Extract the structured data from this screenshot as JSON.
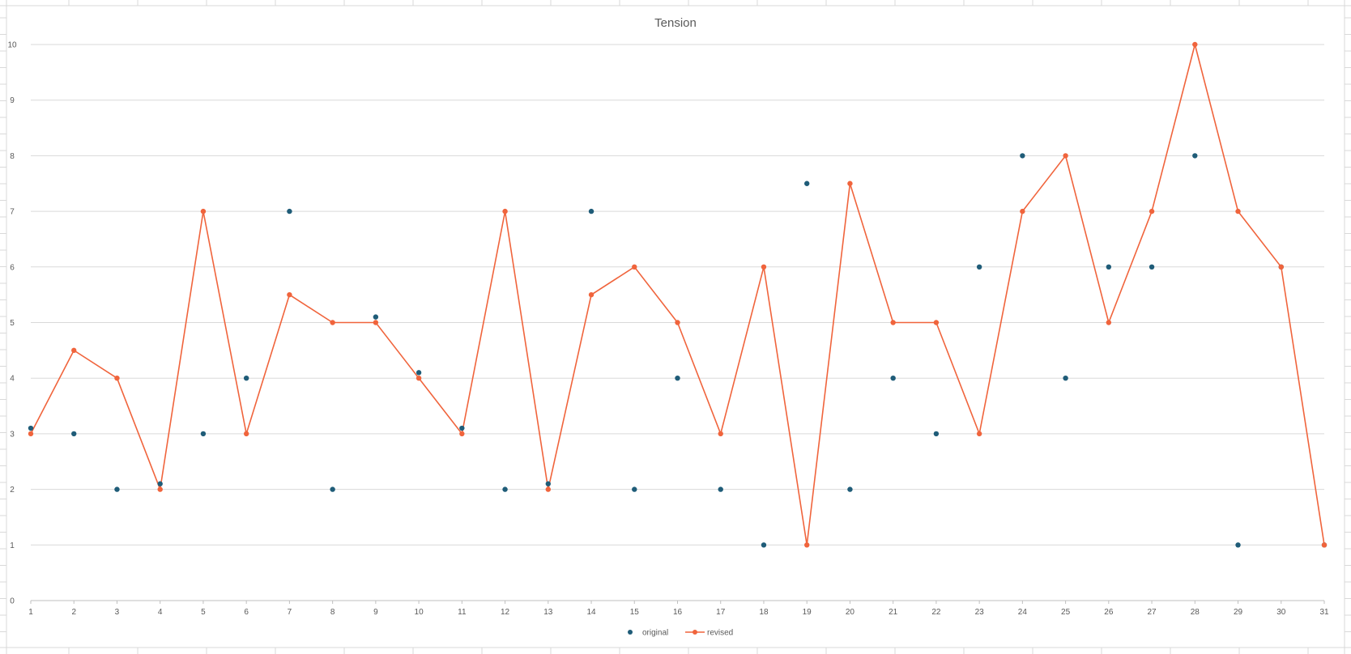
{
  "chart_data": {
    "type": "line",
    "title": "Tension",
    "xlabel": "",
    "ylabel": "",
    "x": [
      1,
      2,
      3,
      4,
      5,
      6,
      7,
      8,
      9,
      10,
      11,
      12,
      13,
      14,
      15,
      16,
      17,
      18,
      19,
      20,
      21,
      22,
      23,
      24,
      25,
      26,
      27,
      28,
      29,
      30,
      31
    ],
    "xlim": [
      1,
      31
    ],
    "ylim": [
      0,
      10
    ],
    "yticks": [
      0,
      1,
      2,
      3,
      4,
      5,
      6,
      7,
      8,
      9,
      10
    ],
    "grid": true,
    "legend": "bottom-center",
    "series": [
      {
        "name": "original",
        "style": "markers",
        "color": "#1f5c78",
        "values": [
          3.1,
          3,
          2,
          2.1,
          3,
          4,
          7,
          2,
          5.1,
          4.1,
          3.1,
          2,
          2.1,
          7,
          2,
          4,
          2,
          1,
          7.5,
          2,
          4,
          3,
          6,
          8,
          4,
          6,
          6,
          8,
          1,
          6,
          1
        ]
      },
      {
        "name": "revised",
        "style": "line-markers",
        "color": "#f0643c",
        "values": [
          3,
          4.5,
          4,
          2,
          7,
          3,
          5.5,
          5,
          5,
          4,
          3,
          7,
          2,
          5.5,
          6,
          5,
          3,
          6,
          1,
          7.5,
          5,
          5,
          3,
          7,
          8,
          5,
          7,
          10,
          7,
          6,
          1
        ]
      }
    ]
  }
}
